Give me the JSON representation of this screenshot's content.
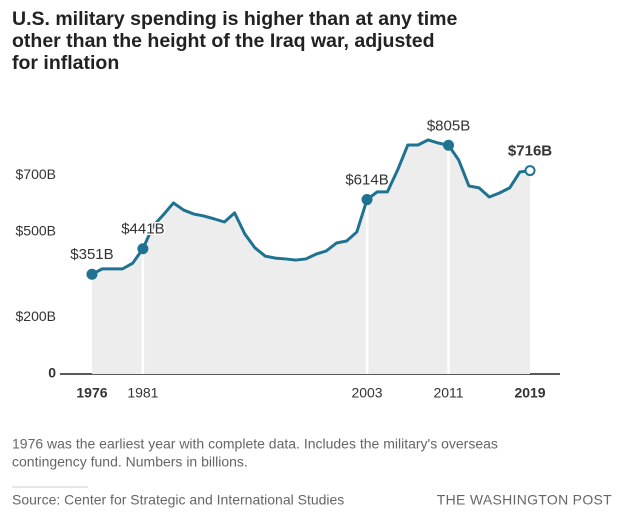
{
  "chart_data": {
    "type": "area-line",
    "title_lines": [
      "U.S. military spending is higher than at any time",
      "other than the height of the Iraq war, adjusted",
      "for inflation"
    ],
    "note_lines": [
      "1976 was the earliest year with complete data. Includes the military's overseas",
      "contingency fund. Numbers in billions."
    ],
    "source": "Source: Center for Strategic and International Studies",
    "credit": "THE WASHINGTON POST",
    "x": [
      1976,
      1977,
      1978,
      1979,
      1980,
      1981,
      1982,
      1983,
      1984,
      1985,
      1986,
      1987,
      1988,
      1989,
      1990,
      1991,
      1992,
      1993,
      1994,
      1995,
      1996,
      1997,
      1998,
      1999,
      2000,
      2001,
      2002,
      2003,
      2004,
      2005,
      2006,
      2007,
      2008,
      2009,
      2010,
      2011,
      2012,
      2013,
      2014,
      2015,
      2016,
      2017,
      2018,
      2019
    ],
    "values": [
      351,
      370,
      370,
      370,
      390,
      441,
      521,
      560,
      602,
      577,
      563,
      556,
      546,
      535,
      567,
      493,
      444,
      415,
      408,
      405,
      401,
      405,
      422,
      433,
      461,
      468,
      500,
      614,
      641,
      641,
      718,
      806,
      806,
      824,
      813,
      805,
      753,
      662,
      655,
      623,
      637,
      655,
      711,
      716
    ],
    "value_labels": [
      "$351B",
      null,
      null,
      null,
      null,
      "$441B",
      null,
      null,
      null,
      null,
      null,
      null,
      null,
      null,
      null,
      null,
      null,
      null,
      null,
      null,
      null,
      null,
      null,
      null,
      null,
      null,
      null,
      "$614B",
      null,
      null,
      null,
      null,
      null,
      null,
      null,
      "$805B",
      null,
      null,
      null,
      null,
      null,
      null,
      null,
      "$716B"
    ],
    "color": "#1f7391",
    "area_color": "#ededed",
    "xlim": [
      1973,
      2022
    ],
    "xticks": [
      1976,
      1981,
      2003,
      2011,
      2019
    ],
    "ylim": [
      0,
      850
    ],
    "yticks": [
      0,
      {
        "value": 200,
        "label": "$200B"
      },
      {
        "value": 500,
        "label": "$500B"
      },
      {
        "value": 700,
        "label": "$700B"
      }
    ]
  }
}
